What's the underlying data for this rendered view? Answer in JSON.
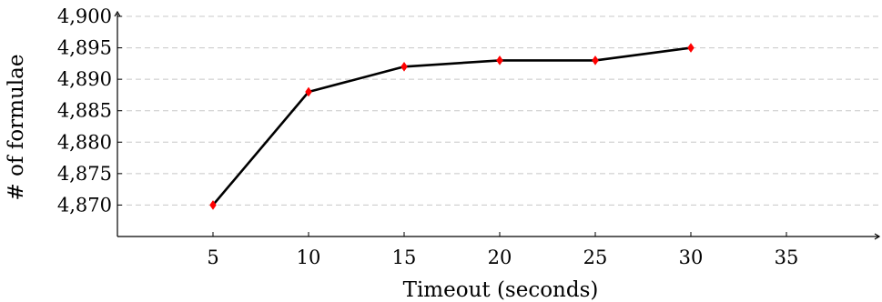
{
  "chart_data": {
    "type": "line",
    "title": "",
    "xlabel": "Timeout (seconds)",
    "ylabel": "# of formulae",
    "x": [
      5,
      10,
      15,
      20,
      25,
      30
    ],
    "series": [
      {
        "values": [
          4870,
          4888,
          4892,
          4893,
          4893,
          4895
        ]
      }
    ],
    "xlim": [
      0,
      40
    ],
    "ylim": [
      4865,
      4900
    ],
    "xticks": [
      5,
      10,
      15,
      20,
      25,
      30,
      35
    ],
    "yticks": [
      4870,
      4875,
      4880,
      4885,
      4890,
      4895,
      4900
    ],
    "xtick_labels": [
      "5",
      "10",
      "15",
      "20",
      "25",
      "30",
      "35"
    ],
    "ytick_labels": [
      "4,870",
      "4,875",
      "4,880",
      "4,885",
      "4,890",
      "4,895",
      "4,900"
    ],
    "grid": "horizontal dashed",
    "line_color": "#000000",
    "marker": "diamond",
    "marker_color": "#ff0000"
  }
}
